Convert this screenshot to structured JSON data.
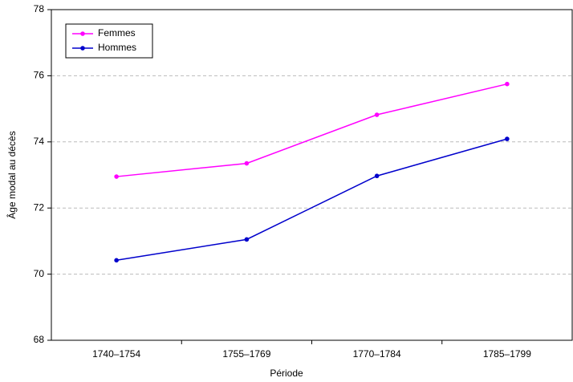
{
  "chart_data": {
    "type": "line",
    "x_label": "Période",
    "y_label": "Âge modal au décès",
    "categories": [
      "1740–1754",
      "1755–1769",
      "1770–1784",
      "1785–1799"
    ],
    "series": [
      {
        "name": "Femmes",
        "color": "#ff00ff",
        "values": [
          72.95,
          73.35,
          74.82,
          75.75
        ]
      },
      {
        "name": "Hommes",
        "color": "#0000cc",
        "values": [
          70.42,
          71.05,
          72.97,
          74.09
        ]
      }
    ],
    "ylim": [
      68,
      78
    ],
    "yticks": [
      68,
      70,
      72,
      74,
      76,
      78
    ],
    "grid": true,
    "legend": "upper left"
  }
}
